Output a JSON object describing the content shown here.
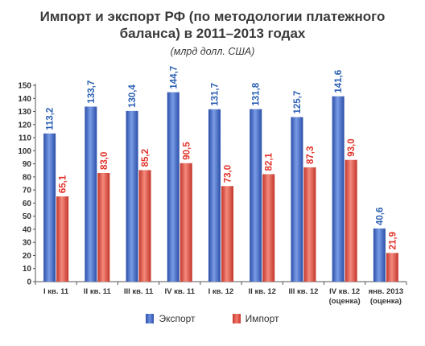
{
  "chart_data": {
    "type": "bar",
    "title_line1": "Импорт и экспорт РФ (по методологии платежного",
    "title_line2": "баланса) в 2011–2013 годах",
    "subtitle": "(млрд долл. США)",
    "categories": [
      [
        "I кв. 11"
      ],
      [
        "II кв. 11"
      ],
      [
        "III кв. 11"
      ],
      [
        "IV кв. 11"
      ],
      [
        "I кв. 12"
      ],
      [
        "II кв. 12"
      ],
      [
        "III кв. 12"
      ],
      [
        "IV кв. 12",
        "(оценка)"
      ],
      [
        "янв. 2013",
        "(оценка)"
      ]
    ],
    "series": [
      {
        "name": "Экспорт",
        "color": "#3d63c4",
        "label_color": "#2b5fb3",
        "values": [
          113.2,
          133.7,
          130.4,
          144.7,
          131.7,
          131.8,
          125.7,
          141.6,
          40.6
        ],
        "labels": [
          "113,2",
          "133,7",
          "130,4",
          "144,7",
          "131,7",
          "131,8",
          "125,7",
          "141,6",
          "40,6"
        ]
      },
      {
        "name": "Импорт",
        "color": "#e04a3c",
        "label_color": "#e2322a",
        "values": [
          65.1,
          83.0,
          85.2,
          90.5,
          73.0,
          82.1,
          87.3,
          93.0,
          21.9
        ],
        "labels": [
          "65,1",
          "83,0",
          "85,2",
          "90,5",
          "73,0",
          "82,1",
          "87,3",
          "93,0",
          "21,9"
        ]
      }
    ],
    "y_ticks": [
      0,
      10,
      20,
      30,
      40,
      50,
      60,
      70,
      80,
      90,
      100,
      110,
      120,
      130,
      140,
      150
    ],
    "ylim": [
      0,
      150
    ],
    "grid": false,
    "legend_position": "bottom"
  }
}
